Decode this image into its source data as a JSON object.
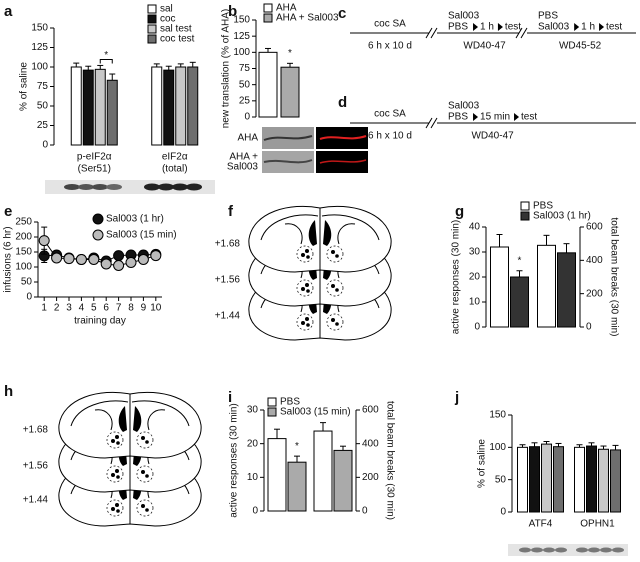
{
  "chart_data": [
    {
      "type": "bar",
      "label": "a",
      "y_label": "% of saline",
      "categories": [
        [
          "p-eIF2α",
          "(Ser51)"
        ],
        [
          "eIF2α",
          "(total)"
        ]
      ],
      "series": [
        {
          "name": "sal",
          "color": "#ffffff",
          "values": [
            100,
            100
          ],
          "errors": [
            5,
            4
          ]
        },
        {
          "name": "coc",
          "color": "#111111",
          "values": [
            96,
            96
          ],
          "errors": [
            5,
            5
          ]
        },
        {
          "name": "sal test",
          "color": "#c8c8c8",
          "values": [
            97,
            100
          ],
          "errors": [
            5,
            4
          ]
        },
        {
          "name": "coc test",
          "color": "#6e6e6e",
          "values": [
            83,
            100
          ],
          "errors": [
            8,
            6
          ]
        }
      ],
      "ylim": [
        0,
        150
      ],
      "yticks": [
        0,
        25,
        50,
        75,
        100,
        125,
        150
      ],
      "annotation": "*"
    },
    {
      "type": "bar",
      "label": "b",
      "y_label": "new translation (% of AHA)",
      "series": [
        {
          "name": "AHA",
          "color": "#ffffff",
          "values": [
            100
          ],
          "errors": [
            6
          ]
        },
        {
          "name": "AHA + Sal003",
          "color": "#aaaaaa",
          "values": [
            77
          ],
          "errors": [
            6
          ]
        }
      ],
      "ylim": [
        0,
        150
      ],
      "yticks": [
        0,
        25,
        50,
        75,
        100,
        125,
        150
      ],
      "annotation": "*",
      "image_labels": [
        [
          "AHA"
        ],
        [
          "AHA +",
          "Sal003"
        ]
      ]
    },
    {
      "type": "line",
      "label": "e",
      "y_label": "infusions (6 hr)",
      "x_label": "training day",
      "x": [
        1,
        2,
        3,
        4,
        5,
        6,
        7,
        8,
        9,
        10
      ],
      "series": [
        {
          "name": "Sal003 (1 hr)",
          "color": "#111111",
          "values": [
            137,
            140,
            130,
            125,
            130,
            120,
            138,
            140,
            140,
            142
          ],
          "errors": [
            22,
            12,
            8,
            8,
            8,
            10,
            8,
            8,
            8,
            8
          ]
        },
        {
          "name": "Sal003 (15 min)",
          "color": "#bbbbbb",
          "values": [
            188,
            130,
            128,
            125,
            125,
            110,
            105,
            115,
            125,
            138
          ],
          "errors": [
            45,
            12,
            8,
            8,
            8,
            10,
            10,
            10,
            10,
            8
          ]
        }
      ],
      "xlim": [
        0.5,
        10.5
      ],
      "xticks": [
        1,
        2,
        3,
        4,
        5,
        6,
        7,
        8,
        9,
        10
      ],
      "ylim": [
        0,
        250
      ],
      "yticks": [
        0,
        50,
        100,
        150,
        200,
        250
      ]
    },
    {
      "type": "bar",
      "label": "g",
      "y_label": "active responses (30 min)",
      "y2_label": "total beam breaks (30 min)",
      "series": [
        {
          "name": "PBS",
          "color": "#ffffff",
          "values": [
            32
          ],
          "errors": [
            5
          ]
        },
        {
          "name": "Sal003 (1 hr)",
          "color": "#333333",
          "values": [
            20
          ],
          "errors": [
            2.5
          ]
        },
        {
          "color": "#ffffff",
          "values": [
            490
          ],
          "errors": [
            60
          ],
          "axis": "y2"
        },
        {
          "color": "#333333",
          "values": [
            445
          ],
          "errors": [
            55
          ],
          "axis": "y2"
        }
      ],
      "ylim": [
        0,
        40
      ],
      "yticks": [
        0,
        10,
        20,
        30,
        40
      ],
      "y2lim": [
        0,
        600
      ],
      "y2ticks": [
        0,
        200,
        400,
        600
      ],
      "annotation": "*"
    },
    {
      "type": "bar",
      "label": "i",
      "y_label": "active responses (30 min)",
      "y2_label": "total beam breaks (30 min)",
      "series": [
        {
          "name": "PBS",
          "color": "#ffffff",
          "values": [
            21.5
          ],
          "errors": [
            2.8
          ]
        },
        {
          "name": "Sal003 (15 min)",
          "color": "#aaaaaa",
          "values": [
            14.5
          ],
          "errors": [
            1.8
          ]
        },
        {
          "color": "#ffffff",
          "values": [
            475
          ],
          "errors": [
            50
          ],
          "axis": "y2"
        },
        {
          "color": "#aaaaaa",
          "values": [
            360
          ],
          "errors": [
            25
          ],
          "axis": "y2"
        }
      ],
      "ylim": [
        0,
        30
      ],
      "yticks": [
        0,
        10,
        20,
        30
      ],
      "y2lim": [
        0,
        600
      ],
      "y2ticks": [
        0,
        200,
        400,
        600
      ],
      "annotation": "*"
    },
    {
      "type": "bar",
      "label": "j",
      "y_label": "% of saline",
      "categories": [
        "ATF4",
        "OPHN1"
      ],
      "series": [
        {
          "color": "#ffffff",
          "values": [
            100,
            100
          ],
          "errors": [
            4,
            4
          ]
        },
        {
          "color": "#111111",
          "values": [
            101,
            102
          ],
          "errors": [
            6,
            5
          ]
        },
        {
          "color": "#c8c8c8",
          "values": [
            105,
            97
          ],
          "errors": [
            4,
            5
          ]
        },
        {
          "color": "#6e6e6e",
          "values": [
            101,
            96
          ],
          "errors": [
            5,
            7
          ]
        }
      ],
      "ylim": [
        0,
        150
      ],
      "yticks": [
        0,
        50,
        100,
        150
      ]
    }
  ],
  "timelines": [
    {
      "label": "c",
      "phase": "coc SA",
      "duration": "6 h x 10 d",
      "steps": [
        {
          "drugs": [
            "Sal003",
            "PBS"
          ],
          "delay": "1 h",
          "event": "test",
          "period": "WD40-47"
        },
        {
          "drugs": [
            "PBS",
            "Sal003"
          ],
          "delay": "1 h",
          "event": "test",
          "period": "WD45-52"
        }
      ]
    },
    {
      "label": "d",
      "phase": "coc SA",
      "duration": "6 h x 10 d",
      "steps": [
        {
          "drugs": [
            "Sal003",
            "PBS"
          ],
          "delay": "15 min",
          "event": "test",
          "period": "WD40-47"
        }
      ]
    }
  ],
  "sections": [
    {
      "label": "f",
      "levels": [
        "+1.68",
        "+1.56",
        "+1.44"
      ]
    },
    {
      "label": "h",
      "levels": [
        "+1.68",
        "+1.56",
        "+1.44"
      ]
    }
  ]
}
